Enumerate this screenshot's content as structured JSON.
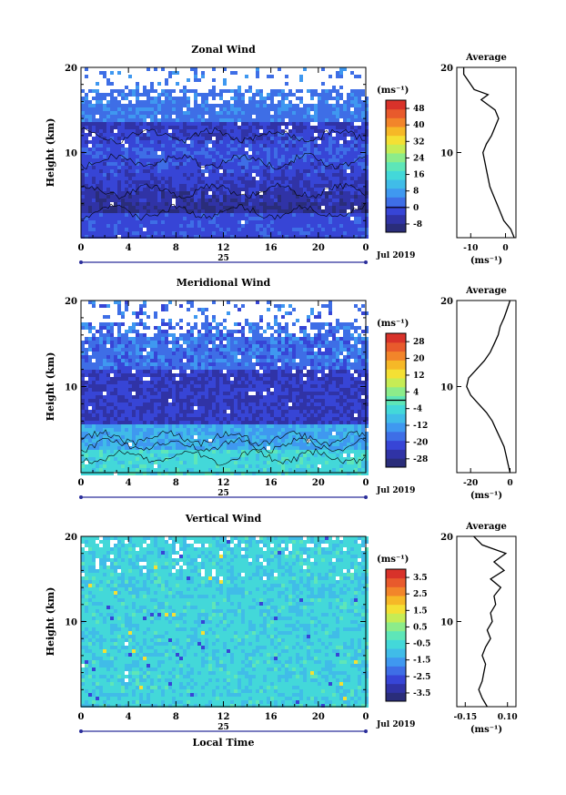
{
  "chart_data": [
    {
      "type": "heatmap",
      "title": "Zonal Wind",
      "ylabel": "Height (km)",
      "xlabel": "",
      "ylim": [
        0,
        20
      ],
      "yticks": [
        "10",
        "20"
      ],
      "xlim": [
        0,
        24
      ],
      "xticks": [
        "0",
        "4",
        "8",
        "12",
        "16",
        "20",
        "0"
      ],
      "day_label": "25",
      "month_label": "Jul 2019",
      "colorbar": {
        "unit": "(ms⁻¹)",
        "ticks": [
          "-8",
          "0",
          "8",
          "16",
          "24",
          "32",
          "40",
          "48"
        ],
        "range": [
          -12,
          52
        ]
      },
      "profile": {
        "title": "Average",
        "unit": "(ms⁻¹)",
        "xticks": [
          "-10",
          "0"
        ],
        "xrange": [
          -14,
          3
        ],
        "points": [
          [
            2.5,
            0
          ],
          [
            1.5,
            1
          ],
          [
            -0.5,
            2
          ],
          [
            -1.5,
            3
          ],
          [
            -2.5,
            4
          ],
          [
            -3.5,
            5
          ],
          [
            -4.5,
            6
          ],
          [
            -5,
            7
          ],
          [
            -5.5,
            8
          ],
          [
            -6,
            9
          ],
          [
            -6.5,
            10
          ],
          [
            -5.5,
            11
          ],
          [
            -4,
            12
          ],
          [
            -3,
            13
          ],
          [
            -2,
            14
          ],
          [
            -3,
            15
          ],
          [
            -5,
            15.6
          ],
          [
            -7,
            16.2
          ],
          [
            -5,
            16.8
          ],
          [
            -9,
            17.4
          ],
          [
            -10,
            18
          ],
          [
            -11,
            18.6
          ],
          [
            -12,
            19.2
          ],
          [
            -12,
            20
          ]
        ]
      },
      "contours": true
    },
    {
      "type": "heatmap",
      "title": "Meridional Wind",
      "ylabel": "Height (km)",
      "xlabel": "",
      "ylim": [
        0,
        20
      ],
      "yticks": [
        "10",
        "20"
      ],
      "xlim": [
        0,
        24
      ],
      "xticks": [
        "0",
        "4",
        "8",
        "12",
        "16",
        "20",
        "0"
      ],
      "day_label": "25",
      "month_label": "Jul 2019",
      "colorbar": {
        "unit": "(ms⁻¹)",
        "ticks": [
          "-28",
          "-20",
          "-12",
          "-4",
          "4",
          "12",
          "20",
          "28"
        ],
        "range": [
          -32,
          32
        ]
      },
      "profile": {
        "title": "Average",
        "unit": "(ms⁻¹)",
        "xticks": [
          "-20",
          "0"
        ],
        "xrange": [
          -27,
          3
        ],
        "points": [
          [
            0,
            0
          ],
          [
            -1,
            1
          ],
          [
            -2,
            2
          ],
          [
            -3,
            3
          ],
          [
            -5,
            4
          ],
          [
            -7,
            5
          ],
          [
            -9,
            6
          ],
          [
            -12,
            7
          ],
          [
            -16,
            8
          ],
          [
            -20,
            9
          ],
          [
            -22,
            10
          ],
          [
            -21,
            11
          ],
          [
            -17,
            12
          ],
          [
            -13,
            13
          ],
          [
            -10,
            14
          ],
          [
            -8,
            15
          ],
          [
            -6,
            16
          ],
          [
            -5,
            17
          ],
          [
            -3,
            18
          ],
          [
            -1.5,
            19
          ],
          [
            0,
            20
          ]
        ]
      },
      "contours": true
    },
    {
      "type": "heatmap",
      "title": "Vertical Wind",
      "ylabel": "Height (km)",
      "xlabel": "Local Time",
      "ylim": [
        0,
        20
      ],
      "yticks": [
        "10",
        "20"
      ],
      "xlim": [
        0,
        24
      ],
      "xticks": [
        "0",
        "4",
        "8",
        "12",
        "16",
        "20",
        "0"
      ],
      "day_label": "25",
      "month_label": "Jul 2019",
      "colorbar": {
        "unit": "(ms⁻¹)",
        "ticks": [
          "-3.5",
          "-2.5",
          "-1.5",
          "-0.5",
          "0.5",
          "1.5",
          "2.5",
          "3.5"
        ],
        "range": [
          -4,
          4
        ]
      },
      "profile": {
        "title": "Average",
        "unit": "(ms⁻¹)",
        "xticks": [
          "-0.15",
          "0.10"
        ],
        "xrange": [
          -0.2,
          0.15
        ],
        "points": [
          [
            -0.02,
            0
          ],
          [
            -0.05,
            1
          ],
          [
            -0.07,
            2
          ],
          [
            -0.05,
            3
          ],
          [
            -0.04,
            4
          ],
          [
            -0.03,
            5
          ],
          [
            -0.05,
            6
          ],
          [
            -0.03,
            7
          ],
          [
            0.0,
            8
          ],
          [
            -0.02,
            9
          ],
          [
            0.01,
            10
          ],
          [
            0.0,
            11
          ],
          [
            0.03,
            12
          ],
          [
            0.02,
            13
          ],
          [
            0.06,
            14
          ],
          [
            0.0,
            15
          ],
          [
            0.08,
            16
          ],
          [
            0.02,
            17
          ],
          [
            0.09,
            18
          ],
          [
            -0.05,
            19
          ],
          [
            -0.1,
            20
          ]
        ]
      },
      "contours": false
    }
  ],
  "colors": {
    "palette": [
      "#2a2d7a",
      "#3033a6",
      "#3745d6",
      "#3e6ee6",
      "#3f98f0",
      "#40bce8",
      "#43d8d9",
      "#5ee6b8",
      "#8cec8a",
      "#c6ec55",
      "#f4e034",
      "#f6b827",
      "#f2852a",
      "#e85a2c",
      "#d8322a"
    ],
    "background": "#ffffff",
    "text": "#000000"
  }
}
